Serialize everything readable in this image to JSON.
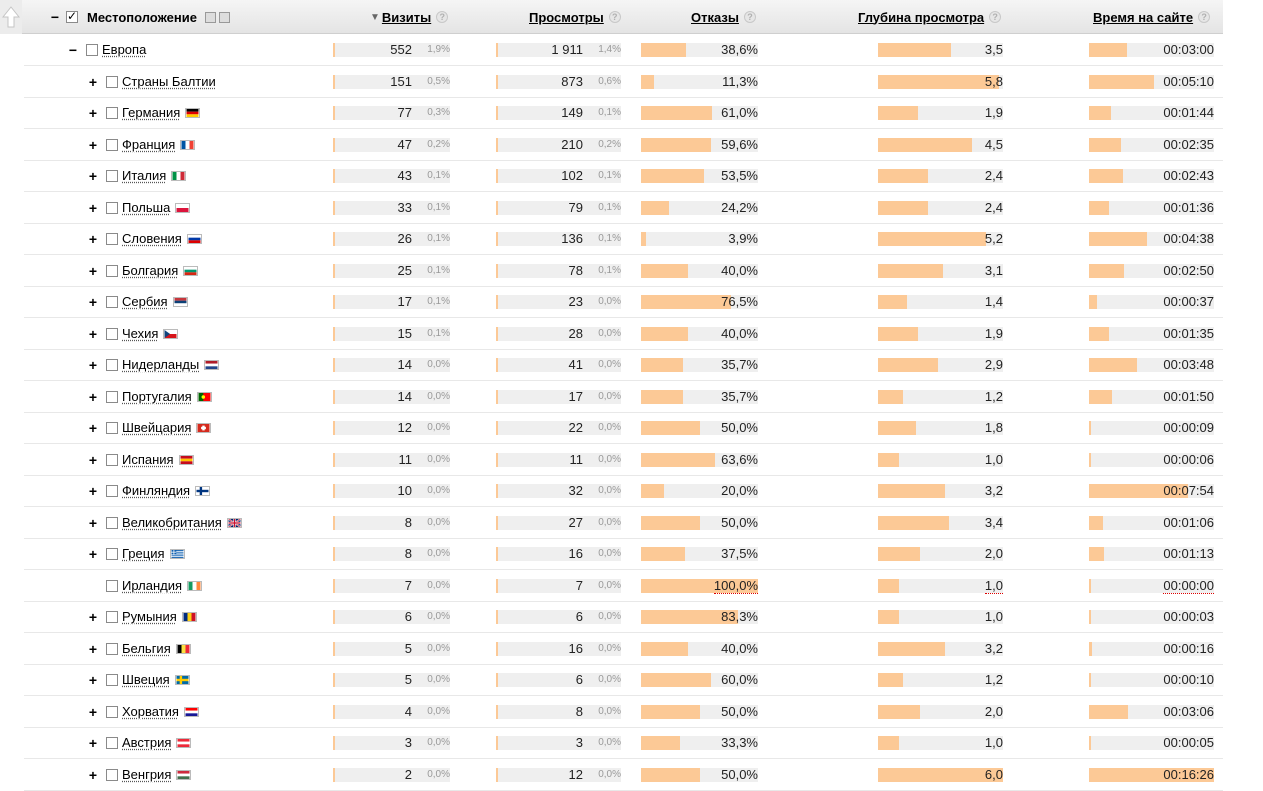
{
  "header": {
    "location_label": "Местоположение",
    "visits_label": "Визиты",
    "views_label": "Просмотры",
    "bounces_label": "Отказы",
    "depth_label": "Глубина просмотра",
    "time_label": "Время на сайте",
    "sort_indicator": "▼",
    "help_glyph": "?"
  },
  "region": {
    "name": "Европа",
    "toggle": "−",
    "visits": "552",
    "visits_pct": "1,9%",
    "views": "1 911",
    "views_pct": "1,4%",
    "bounce": "38,6%",
    "depth": "3,5",
    "time": "00:03:00",
    "bounce_fraction": 0.386,
    "depth_value": 3.5,
    "time_seconds": 180
  },
  "rows": [
    {
      "name": "Страны Балтии",
      "toggle": "+",
      "visits": "151",
      "visits_pct": "0,5%",
      "views": "873",
      "views_pct": "0,6%",
      "bounce": "11,3%",
      "depth": "5,8",
      "time": "00:05:10",
      "flag": "none",
      "v": 151,
      "pv": 873,
      "b": 0.113,
      "d": 5.8,
      "t": 310
    },
    {
      "name": "Германия",
      "toggle": "+",
      "visits": "77",
      "visits_pct": "0,3%",
      "views": "149",
      "views_pct": "0,1%",
      "bounce": "61,0%",
      "depth": "1,9",
      "time": "00:01:44",
      "flag": "de",
      "v": 77,
      "pv": 149,
      "b": 0.61,
      "d": 1.9,
      "t": 104
    },
    {
      "name": "Франция",
      "toggle": "+",
      "visits": "47",
      "visits_pct": "0,2%",
      "views": "210",
      "views_pct": "0,2%",
      "bounce": "59,6%",
      "depth": "4,5",
      "time": "00:02:35",
      "flag": "fr",
      "v": 47,
      "pv": 210,
      "b": 0.596,
      "d": 4.5,
      "t": 155
    },
    {
      "name": "Италия",
      "toggle": "+",
      "visits": "43",
      "visits_pct": "0,1%",
      "views": "102",
      "views_pct": "0,1%",
      "bounce": "53,5%",
      "depth": "2,4",
      "time": "00:02:43",
      "flag": "it",
      "v": 43,
      "pv": 102,
      "b": 0.535,
      "d": 2.4,
      "t": 163
    },
    {
      "name": "Польша",
      "toggle": "+",
      "visits": "33",
      "visits_pct": "0,1%",
      "views": "79",
      "views_pct": "0,1%",
      "bounce": "24,2%",
      "depth": "2,4",
      "time": "00:01:36",
      "flag": "pl",
      "v": 33,
      "pv": 79,
      "b": 0.242,
      "d": 2.4,
      "t": 96
    },
    {
      "name": "Словения",
      "toggle": "+",
      "visits": "26",
      "visits_pct": "0,1%",
      "views": "136",
      "views_pct": "0,1%",
      "bounce": "3,9%",
      "depth": "5,2",
      "time": "00:04:38",
      "flag": "si",
      "v": 26,
      "pv": 136,
      "b": 0.039,
      "d": 5.2,
      "t": 278
    },
    {
      "name": "Болгария",
      "toggle": "+",
      "visits": "25",
      "visits_pct": "0,1%",
      "views": "78",
      "views_pct": "0,1%",
      "bounce": "40,0%",
      "depth": "3,1",
      "time": "00:02:50",
      "flag": "bg",
      "v": 25,
      "pv": 78,
      "b": 0.4,
      "d": 3.1,
      "t": 170
    },
    {
      "name": "Сербия",
      "toggle": "+",
      "visits": "17",
      "visits_pct": "0,1%",
      "views": "23",
      "views_pct": "0,0%",
      "bounce": "76,5%",
      "depth": "1,4",
      "time": "00:00:37",
      "flag": "rs",
      "v": 17,
      "pv": 23,
      "b": 0.765,
      "d": 1.4,
      "t": 37
    },
    {
      "name": "Чехия",
      "toggle": "+",
      "visits": "15",
      "visits_pct": "0,1%",
      "views": "28",
      "views_pct": "0,0%",
      "bounce": "40,0%",
      "depth": "1,9",
      "time": "00:01:35",
      "flag": "cz",
      "v": 15,
      "pv": 28,
      "b": 0.4,
      "d": 1.9,
      "t": 95
    },
    {
      "name": "Нидерланды",
      "toggle": "+",
      "visits": "14",
      "visits_pct": "0,0%",
      "views": "41",
      "views_pct": "0,0%",
      "bounce": "35,7%",
      "depth": "2,9",
      "time": "00:03:48",
      "flag": "nl",
      "v": 14,
      "pv": 41,
      "b": 0.357,
      "d": 2.9,
      "t": 228
    },
    {
      "name": "Португалия",
      "toggle": "+",
      "visits": "14",
      "visits_pct": "0,0%",
      "views": "17",
      "views_pct": "0,0%",
      "bounce": "35,7%",
      "depth": "1,2",
      "time": "00:01:50",
      "flag": "pt",
      "v": 14,
      "pv": 17,
      "b": 0.357,
      "d": 1.2,
      "t": 110
    },
    {
      "name": "Швейцария",
      "toggle": "+",
      "visits": "12",
      "visits_pct": "0,0%",
      "views": "22",
      "views_pct": "0,0%",
      "bounce": "50,0%",
      "depth": "1,8",
      "time": "00:00:09",
      "flag": "ch",
      "v": 12,
      "pv": 22,
      "b": 0.5,
      "d": 1.8,
      "t": 9
    },
    {
      "name": "Испания",
      "toggle": "+",
      "visits": "11",
      "visits_pct": "0,0%",
      "views": "11",
      "views_pct": "0,0%",
      "bounce": "63,6%",
      "depth": "1,0",
      "time": "00:00:06",
      "flag": "es",
      "v": 11,
      "pv": 11,
      "b": 0.636,
      "d": 1.0,
      "t": 6
    },
    {
      "name": "Финляндия",
      "toggle": "+",
      "visits": "10",
      "visits_pct": "0,0%",
      "views": "32",
      "views_pct": "0,0%",
      "bounce": "20,0%",
      "depth": "3,2",
      "time": "00:07:54",
      "flag": "fi",
      "v": 10,
      "pv": 32,
      "b": 0.2,
      "d": 3.2,
      "t": 474
    },
    {
      "name": "Великобритания",
      "toggle": "+",
      "visits": "8",
      "visits_pct": "0,0%",
      "views": "27",
      "views_pct": "0,0%",
      "bounce": "50,0%",
      "depth": "3,4",
      "time": "00:01:06",
      "flag": "gb",
      "v": 8,
      "pv": 27,
      "b": 0.5,
      "d": 3.4,
      "t": 66
    },
    {
      "name": "Греция",
      "toggle": "+",
      "visits": "8",
      "visits_pct": "0,0%",
      "views": "16",
      "views_pct": "0,0%",
      "bounce": "37,5%",
      "depth": "2,0",
      "time": "00:01:13",
      "flag": "gr",
      "v": 8,
      "pv": 16,
      "b": 0.375,
      "d": 2.0,
      "t": 73
    },
    {
      "name": "Ирландия",
      "toggle": "",
      "visits": "7",
      "visits_pct": "0,0%",
      "views": "7",
      "views_pct": "0,0%",
      "bounce": "100,0%",
      "depth": "1,0",
      "time": "00:00:00",
      "flag": "ie",
      "v": 7,
      "pv": 7,
      "b": 1.0,
      "d": 1.0,
      "t": 0,
      "warn": true
    },
    {
      "name": "Румыния",
      "toggle": "+",
      "visits": "6",
      "visits_pct": "0,0%",
      "views": "6",
      "views_pct": "0,0%",
      "bounce": "83,3%",
      "depth": "1,0",
      "time": "00:00:03",
      "flag": "ro",
      "v": 6,
      "pv": 6,
      "b": 0.833,
      "d": 1.0,
      "t": 3
    },
    {
      "name": "Бельгия",
      "toggle": "+",
      "visits": "5",
      "visits_pct": "0,0%",
      "views": "16",
      "views_pct": "0,0%",
      "bounce": "40,0%",
      "depth": "3,2",
      "time": "00:00:16",
      "flag": "be",
      "v": 5,
      "pv": 16,
      "b": 0.4,
      "d": 3.2,
      "t": 16
    },
    {
      "name": "Швеция",
      "toggle": "+",
      "visits": "5",
      "visits_pct": "0,0%",
      "views": "6",
      "views_pct": "0,0%",
      "bounce": "60,0%",
      "depth": "1,2",
      "time": "00:00:10",
      "flag": "se",
      "v": 5,
      "pv": 6,
      "b": 0.6,
      "d": 1.2,
      "t": 10
    },
    {
      "name": "Хорватия",
      "toggle": "+",
      "visits": "4",
      "visits_pct": "0,0%",
      "views": "8",
      "views_pct": "0,0%",
      "bounce": "50,0%",
      "depth": "2,0",
      "time": "00:03:06",
      "flag": "hr",
      "v": 4,
      "pv": 8,
      "b": 0.5,
      "d": 2.0,
      "t": 186
    },
    {
      "name": "Австрия",
      "toggle": "+",
      "visits": "3",
      "visits_pct": "0,0%",
      "views": "3",
      "views_pct": "0,0%",
      "bounce": "33,3%",
      "depth": "1,0",
      "time": "00:00:05",
      "flag": "at",
      "v": 3,
      "pv": 3,
      "b": 0.333,
      "d": 1.0,
      "t": 5
    },
    {
      "name": "Венгрия",
      "toggle": "+",
      "visits": "2",
      "visits_pct": "0,0%",
      "views": "12",
      "views_pct": "0,0%",
      "bounce": "50,0%",
      "depth": "6,0",
      "time": "00:16:26",
      "flag": "hu",
      "v": 2,
      "pv": 12,
      "b": 0.5,
      "d": 6.0,
      "t": 986
    }
  ],
  "colors": {
    "bar": "#fcc996",
    "track": "#efefef"
  }
}
